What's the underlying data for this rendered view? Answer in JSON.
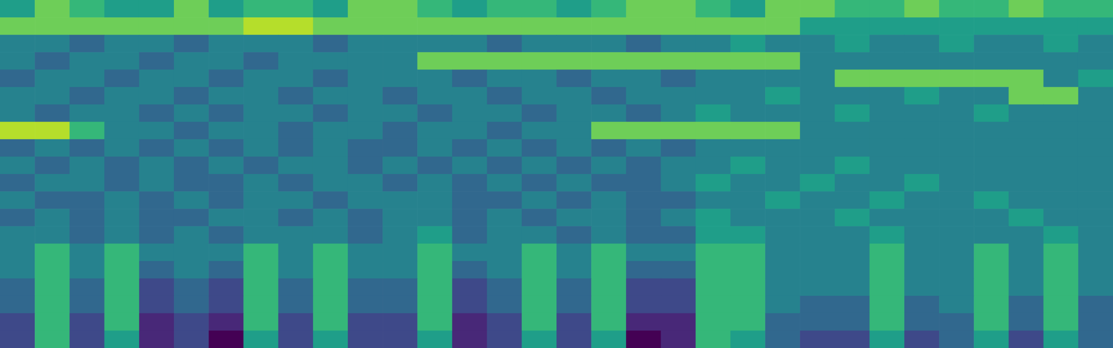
{
  "chart_data": {
    "type": "heatmap",
    "tick_labels": false,
    "zlim": [
      0,
      9
    ],
    "cells": [
      [
        5,
        7,
        6,
        5,
        5,
        7,
        5,
        6,
        6,
        5,
        7,
        7,
        6,
        5,
        6,
        6,
        5,
        6,
        7,
        7,
        6,
        5,
        7,
        7,
        6,
        6,
        7,
        6,
        6,
        7,
        6,
        6
      ],
      [
        7,
        7,
        7,
        7,
        7,
        7,
        7,
        8,
        8,
        7,
        7,
        7,
        7,
        7,
        7,
        7,
        7,
        7,
        7,
        7,
        7,
        7,
        7,
        5,
        5,
        5,
        5,
        5,
        5,
        5,
        5,
        5
      ],
      [
        4,
        4,
        3,
        4,
        4,
        3,
        4,
        4,
        4,
        3,
        4,
        4,
        4,
        4,
        3,
        4,
        4,
        4,
        3,
        4,
        4,
        5,
        4,
        4,
        5,
        4,
        4,
        5,
        4,
        4,
        5,
        4
      ],
      [
        4,
        3,
        4,
        4,
        3,
        4,
        4,
        3,
        4,
        4,
        4,
        4,
        7,
        7,
        7,
        7,
        7,
        7,
        7,
        7,
        7,
        7,
        7,
        4,
        4,
        4,
        4,
        4,
        4,
        4,
        4,
        4
      ],
      [
        3,
        4,
        4,
        3,
        4,
        4,
        3,
        4,
        4,
        3,
        4,
        4,
        4,
        3,
        4,
        4,
        3,
        4,
        4,
        3,
        4,
        4,
        4,
        4,
        7,
        7,
        7,
        7,
        7,
        7,
        4,
        5
      ],
      [
        4,
        4,
        3,
        4,
        4,
        3,
        4,
        4,
        3,
        4,
        4,
        3,
        4,
        4,
        3,
        4,
        4,
        3,
        4,
        4,
        4,
        4,
        5,
        4,
        4,
        4,
        5,
        4,
        4,
        7,
        7,
        4
      ],
      [
        4,
        3,
        4,
        4,
        3,
        4,
        3,
        4,
        4,
        3,
        4,
        4,
        3,
        4,
        4,
        3,
        4,
        4,
        3,
        4,
        5,
        4,
        4,
        4,
        5,
        4,
        4,
        4,
        5,
        4,
        4,
        4
      ],
      [
        8,
        8,
        6,
        4,
        4,
        3,
        4,
        4,
        3,
        4,
        4,
        3,
        4,
        4,
        3,
        4,
        4,
        7,
        7,
        7,
        7,
        7,
        7,
        4,
        4,
        4,
        4,
        4,
        4,
        4,
        4,
        4
      ],
      [
        3,
        4,
        3,
        4,
        3,
        4,
        3,
        4,
        3,
        4,
        3,
        3,
        4,
        3,
        4,
        3,
        4,
        3,
        4,
        3,
        4,
        4,
        4,
        4,
        4,
        4,
        4,
        4,
        4,
        4,
        4,
        4
      ],
      [
        4,
        3,
        4,
        3,
        4,
        3,
        4,
        3,
        4,
        4,
        3,
        4,
        3,
        4,
        3,
        4,
        3,
        4,
        3,
        4,
        4,
        5,
        4,
        4,
        5,
        4,
        4,
        4,
        4,
        4,
        4,
        4
      ],
      [
        3,
        4,
        4,
        3,
        4,
        3,
        3,
        4,
        3,
        4,
        4,
        3,
        4,
        3,
        4,
        3,
        4,
        3,
        3,
        4,
        5,
        4,
        4,
        5,
        4,
        4,
        5,
        4,
        4,
        4,
        4,
        4
      ],
      [
        4,
        3,
        3,
        4,
        3,
        4,
        3,
        4,
        4,
        3,
        4,
        4,
        4,
        3,
        3,
        4,
        3,
        4,
        3,
        3,
        4,
        4,
        5,
        4,
        4,
        5,
        4,
        4,
        5,
        4,
        4,
        4
      ],
      [
        3,
        4,
        3,
        4,
        3,
        3,
        4,
        4,
        3,
        4,
        3,
        4,
        4,
        3,
        4,
        3,
        4,
        4,
        3,
        4,
        5,
        4,
        4,
        4,
        5,
        4,
        4,
        4,
        4,
        5,
        4,
        4
      ],
      [
        4,
        4,
        3,
        4,
        3,
        4,
        3,
        4,
        4,
        4,
        3,
        4,
        5,
        3,
        4,
        4,
        3,
        4,
        3,
        3,
        5,
        5,
        4,
        4,
        4,
        5,
        4,
        4,
        4,
        4,
        5,
        4
      ],
      [
        4,
        6,
        4,
        6,
        4,
        4,
        4,
        6,
        4,
        6,
        4,
        4,
        6,
        4,
        4,
        6,
        4,
        6,
        4,
        4,
        6,
        6,
        4,
        4,
        4,
        6,
        4,
        4,
        6,
        4,
        6,
        4
      ],
      [
        4,
        6,
        4,
        6,
        3,
        4,
        3,
        6,
        4,
        6,
        4,
        4,
        6,
        3,
        4,
        6,
        4,
        6,
        3,
        3,
        6,
        6,
        4,
        4,
        4,
        6,
        4,
        4,
        6,
        4,
        6,
        4
      ],
      [
        3,
        6,
        3,
        6,
        2,
        3,
        2,
        6,
        3,
        6,
        3,
        3,
        6,
        2,
        3,
        6,
        3,
        6,
        2,
        2,
        6,
        6,
        4,
        4,
        4,
        6,
        4,
        4,
        6,
        4,
        6,
        4
      ],
      [
        3,
        6,
        3,
        6,
        2,
        3,
        2,
        6,
        3,
        6,
        3,
        3,
        6,
        2,
        3,
        6,
        3,
        6,
        2,
        2,
        6,
        6,
        4,
        3,
        3,
        6,
        3,
        4,
        6,
        3,
        6,
        3
      ],
      [
        2,
        6,
        2,
        6,
        1,
        2,
        1,
        6,
        2,
        6,
        2,
        2,
        6,
        1,
        2,
        6,
        2,
        6,
        1,
        1,
        6,
        6,
        3,
        3,
        3,
        6,
        3,
        3,
        6,
        3,
        6,
        3
      ],
      [
        2,
        6,
        2,
        5,
        1,
        2,
        0,
        5,
        2,
        5,
        2,
        2,
        5,
        1,
        2,
        5,
        2,
        5,
        0,
        1,
        6,
        5,
        3,
        2,
        2,
        5,
        2,
        3,
        5,
        2,
        5,
        3
      ]
    ]
  }
}
